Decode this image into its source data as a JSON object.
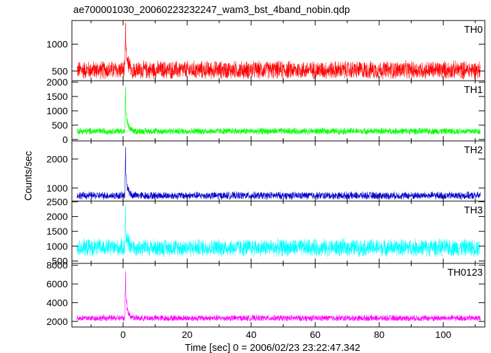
{
  "chart_data": {
    "type": "line",
    "title": "ae700001030_20060223232247_wam3_bst_4band_nobin.qdp",
    "xlabel": "Time [sec] 0 = 2006/02/23 23:22:47.342",
    "ylabel": "Counts/sec",
    "xlim": [
      -16,
      113
    ],
    "xticks": [
      0,
      20,
      40,
      60,
      80,
      100
    ],
    "xtick_labels": [
      "0",
      "20",
      "40",
      "60",
      "80",
      "100"
    ],
    "legend": "panel labels at top-right of each panel",
    "grid": false,
    "panels": [
      {
        "name": "TH0",
        "color": "#ff0000",
        "ylim": [
          320,
          1440
        ],
        "yticks": [
          500,
          1000
        ],
        "ytick_labels": [
          "500",
          "1000"
        ],
        "baseline": 520,
        "noise_half_width": 190,
        "peak": {
          "x": 0.8,
          "y": 1440
        }
      },
      {
        "name": "TH1",
        "color": "#00ff00",
        "ylim": [
          -50,
          2050
        ],
        "yticks": [
          0,
          500,
          1000,
          1500,
          2000
        ],
        "ytick_labels": [
          "0",
          "500",
          "1000",
          "1500",
          "2000"
        ],
        "baseline": 290,
        "noise_half_width": 130,
        "peak": {
          "x": 0.8,
          "y": 2000
        }
      },
      {
        "name": "TH2",
        "color": "#0000cc",
        "ylim": [
          550,
          2620
        ],
        "yticks": [
          1000,
          2000
        ],
        "ytick_labels": [
          "1000",
          "2000"
        ],
        "baseline": 740,
        "noise_half_width": 150,
        "peak": {
          "x": 0.8,
          "y": 2600
        }
      },
      {
        "name": "TH3",
        "color": "#00ffff",
        "ylim": [
          420,
          2520
        ],
        "yticks": [
          500,
          1000,
          1500,
          2000,
          2500
        ],
        "ytick_labels": [
          "500",
          "1000",
          "1500",
          "2000",
          "2500"
        ],
        "baseline": 950,
        "noise_half_width": 330,
        "peak": {
          "x": 0.8,
          "y": 2500
        }
      },
      {
        "name": "TH0123",
        "color": "#ff00ff",
        "ylim": [
          1400,
          8200
        ],
        "yticks": [
          2000,
          4000,
          6000,
          8000
        ],
        "ytick_labels": [
          "2000",
          "4000",
          "6000",
          "8000"
        ],
        "baseline": 2350,
        "noise_half_width": 380,
        "peak": {
          "x": 0.8,
          "y": 8100
        }
      }
    ]
  }
}
